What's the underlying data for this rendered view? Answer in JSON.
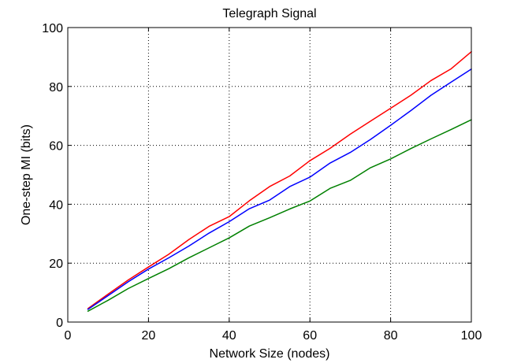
{
  "chart_data": {
    "type": "line",
    "title": "Telegraph Signal",
    "xlabel": "Network Size (nodes)",
    "ylabel": "One-step MI (bits)",
    "xlim": [
      0,
      100
    ],
    "ylim": [
      0,
      100
    ],
    "xticks": [
      0,
      20,
      40,
      60,
      80,
      100
    ],
    "yticks": [
      0,
      20,
      40,
      60,
      80,
      100
    ],
    "grid": true,
    "legend": "none",
    "x": [
      5,
      10,
      15,
      20,
      25,
      30,
      35,
      40,
      45,
      50,
      55,
      60,
      65,
      70,
      75,
      80,
      85,
      90,
      95,
      100
    ],
    "series": [
      {
        "color": "#ff0000",
        "values": [
          4.6,
          9.5,
          14.3,
          18.7,
          23.0,
          28.0,
          32.5,
          35.8,
          41.2,
          46.0,
          49.6,
          54.8,
          59.0,
          63.8,
          68.2,
          72.6,
          77.0,
          82.0,
          86.0,
          91.8
        ]
      },
      {
        "color": "#0000ff",
        "values": [
          4.3,
          9.0,
          13.7,
          18.0,
          21.8,
          25.8,
          30.2,
          34.1,
          38.5,
          41.4,
          46.0,
          49.2,
          54.0,
          57.6,
          62.0,
          66.8,
          71.8,
          77.0,
          81.5,
          85.9
        ]
      },
      {
        "color": "#008000",
        "values": [
          3.7,
          7.4,
          11.4,
          14.8,
          18.1,
          21.8,
          25.2,
          28.6,
          32.6,
          35.4,
          38.4,
          41.1,
          45.4,
          48.1,
          52.4,
          55.4,
          58.9,
          62.2,
          65.4,
          68.7
        ]
      }
    ]
  }
}
